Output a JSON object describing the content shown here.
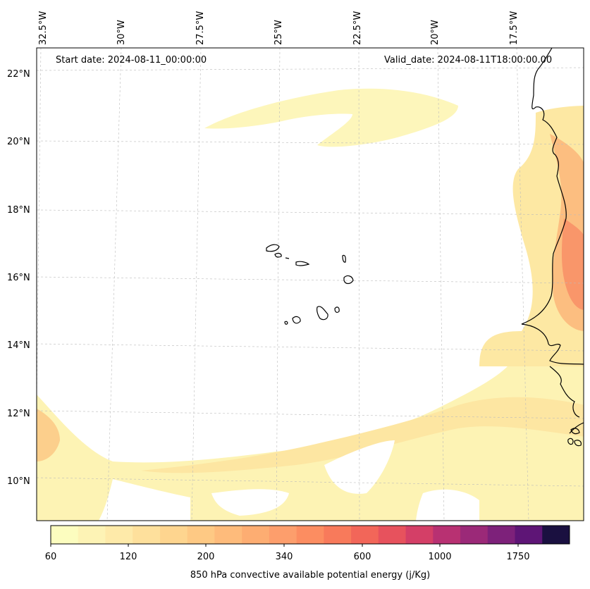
{
  "map": {
    "start_date": "Start date: 2024-08-11_00:00:00",
    "valid_date": "Valid_date: 2024-08-11T18:00:00.00",
    "lon_labels": [
      "32.5°W",
      "30°W",
      "27.5°W",
      "25°W",
      "22.5°W",
      "20°W",
      "17.5°W"
    ],
    "lat_labels": [
      "22°N",
      "20°N",
      "18°N",
      "16°N",
      "14°N",
      "12°N",
      "10°N"
    ]
  },
  "colorbar": {
    "title": "850 hPa convective available potential energy (j/Kg)",
    "tick_labels": [
      "60",
      "120",
      "200",
      "340",
      "600",
      "1000",
      "1750"
    ],
    "colors": [
      "#fcfdbf",
      "#fdf3b5",
      "#feeaa9",
      "#fee09c",
      "#fed58f",
      "#fec984",
      "#febb7b",
      "#fdad72",
      "#fd9e6c",
      "#fc8d61",
      "#f87a5b",
      "#f26659",
      "#e7525d",
      "#d43f67",
      "#b83172",
      "#9b2978",
      "#7d217a",
      "#5e1576",
      "#1a1040"
    ]
  }
}
